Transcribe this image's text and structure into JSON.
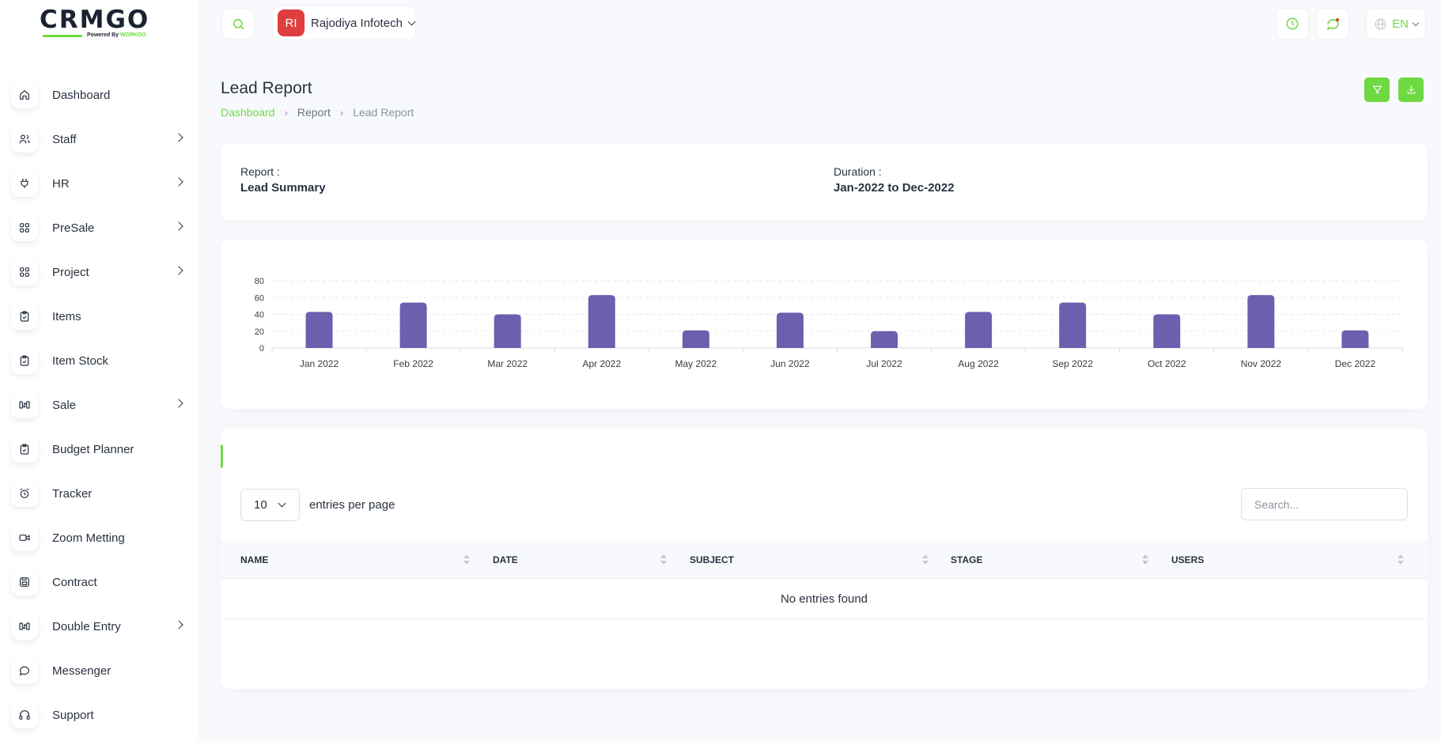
{
  "brand": {
    "logo_text": "CRMGO",
    "powered_by": "Powered By",
    "powered_brand": "WORKDO"
  },
  "sidebar": {
    "items": [
      {
        "label": "Dashboard",
        "icon": "home-icon",
        "has_children": false
      },
      {
        "label": "Staff",
        "icon": "users-icon",
        "has_children": true
      },
      {
        "label": "HR",
        "icon": "plug-icon",
        "has_children": true
      },
      {
        "label": "PreSale",
        "icon": "grid-icon",
        "has_children": true
      },
      {
        "label": "Project",
        "icon": "grid-icon",
        "has_children": true
      },
      {
        "label": "Items",
        "icon": "clipboard-icon",
        "has_children": false
      },
      {
        "label": "Item Stock",
        "icon": "clipboard-icon",
        "has_children": false
      },
      {
        "label": "Sale",
        "icon": "transfer-icon",
        "has_children": true
      },
      {
        "label": "Budget Planner",
        "icon": "clipboard-icon",
        "has_children": false
      },
      {
        "label": "Tracker",
        "icon": "alarm-icon",
        "has_children": false
      },
      {
        "label": "Zoom Metting",
        "icon": "video-icon",
        "has_children": false
      },
      {
        "label": "Contract",
        "icon": "save-icon",
        "has_children": false
      },
      {
        "label": "Double Entry",
        "icon": "transfer-icon",
        "has_children": true
      },
      {
        "label": "Messenger",
        "icon": "chat-icon",
        "has_children": false
      },
      {
        "label": "Support",
        "icon": "headset-icon",
        "has_children": false
      }
    ]
  },
  "topbar": {
    "workspace_initials": "RI",
    "workspace_name": "Rajodiya Infotech",
    "language": "EN"
  },
  "page": {
    "title": "Lead Report",
    "breadcrumb": [
      "Dashboard",
      "Report",
      "Lead Report"
    ]
  },
  "report_info": {
    "report_label": "Report :",
    "report_value": "Lead Summary",
    "duration_label": "Duration :",
    "duration_value": "Jan-2022 to Dec-2022"
  },
  "colors": {
    "accent": "#6fd943",
    "bar": "#6c5fad"
  },
  "chart_data": {
    "type": "bar",
    "categories": [
      "Jan 2022",
      "Feb 2022",
      "Mar 2022",
      "Apr 2022",
      "May 2022",
      "Jun 2022",
      "Jul 2022",
      "Aug 2022",
      "Sep 2022",
      "Oct 2022",
      "Nov 2022",
      "Dec 2022"
    ],
    "values": [
      43,
      54,
      40,
      63,
      21,
      42,
      20,
      43,
      54,
      40,
      63,
      21
    ],
    "yticks": [
      0,
      20,
      40,
      60,
      80
    ],
    "ylim": [
      0,
      80
    ],
    "grid": true
  },
  "table": {
    "entries_value": "10",
    "entries_label": "entries per page",
    "search_placeholder": "Search...",
    "columns": [
      "NAME",
      "DATE",
      "SUBJECT",
      "STAGE",
      "USERS"
    ],
    "empty_text": "No entries found"
  }
}
